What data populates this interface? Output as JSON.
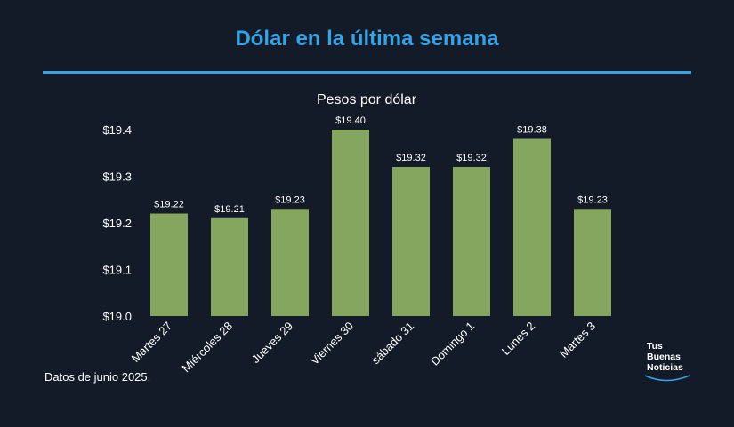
{
  "header": {
    "title": "Dólar en la última semana"
  },
  "footer": {
    "note": "Datos de junio 2025."
  },
  "logo": {
    "line1": "Tus",
    "line2": "Buenas",
    "line3": "Noticias"
  },
  "chart_data": {
    "type": "bar",
    "title": "Pesos por dólar",
    "xlabel": "",
    "ylabel": "",
    "categories": [
      "Martes 27",
      "Miércoles 28",
      "Jueves 29",
      "Viernes 30",
      "sábado 31",
      "Domingo 1",
      "Lunes 2",
      "Martes 3"
    ],
    "values": [
      19.22,
      19.21,
      19.23,
      19.4,
      19.32,
      19.32,
      19.38,
      19.23
    ],
    "value_labels": [
      "$19.22",
      "$19.21",
      "$19.23",
      "$19.40",
      "$19.32",
      "$19.32",
      "$19.38",
      "$19.23"
    ],
    "ylim": [
      19.0,
      19.4
    ],
    "yticks": [
      19.0,
      19.1,
      19.2,
      19.3,
      19.4
    ],
    "ytick_labels": [
      "$19.0",
      "$19.1",
      "$19.2",
      "$19.3",
      "$19.4"
    ],
    "grid": false,
    "legend": "none",
    "bar_color": "#84a65e"
  }
}
